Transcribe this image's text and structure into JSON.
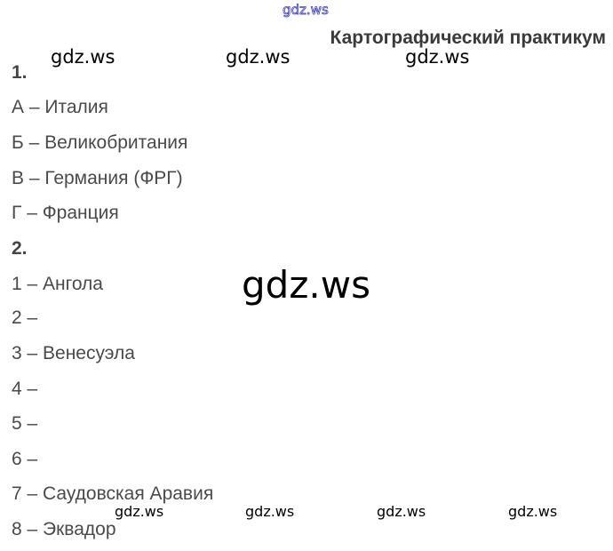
{
  "header": {
    "title": "Картографический практикум"
  },
  "watermarks": {
    "top": "gdz.ws",
    "row1": [
      "gdz.ws",
      "gdz.ws",
      "gdz.ws"
    ],
    "center": "gdz.ws",
    "bottom": [
      "gdz.ws",
      "gdz.ws",
      "gdz.ws",
      "gdz.ws"
    ]
  },
  "section1": {
    "number": "1.",
    "items": [
      "А – Италия",
      "Б – Великобритания",
      "В – Германия (ФРГ)",
      "Г – Франция"
    ]
  },
  "section2": {
    "number": "2.",
    "items": [
      "1 – Ангола",
      "2 –",
      "3 – Венесуэла",
      "4 –",
      "5 –",
      "6 –",
      "7 – Саудовская Аравия",
      "8 – Эквадор"
    ]
  }
}
